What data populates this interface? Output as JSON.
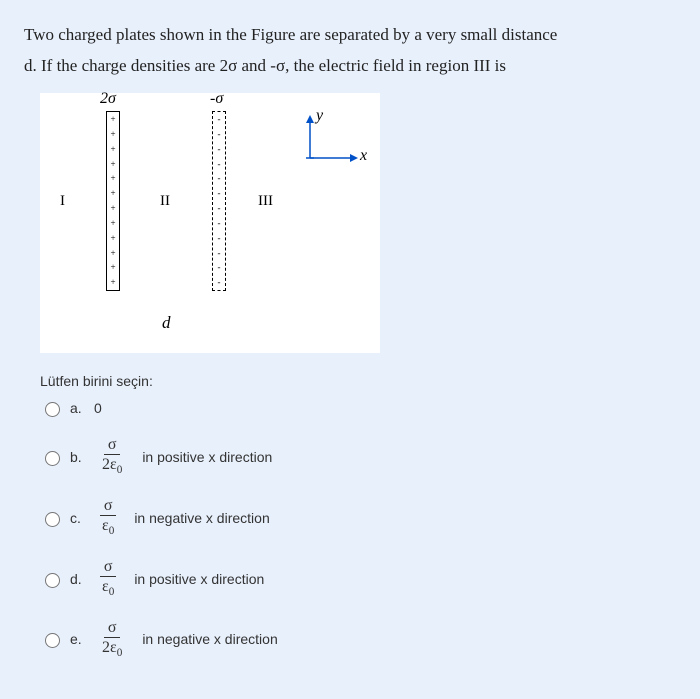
{
  "question": {
    "line1": "Two charged plates shown in the Figure are separated by a very small distance",
    "line2": "d. If the charge densities are 2σ and -σ, the electric field in region III is"
  },
  "figure": {
    "sigma_pos": "2σ",
    "sigma_neg": "-σ",
    "region1": "I",
    "region2": "II",
    "region3": "III",
    "d_label": "d",
    "y_label": "y",
    "x_label": "x",
    "pos_symbol": "+",
    "neg_symbol": "-",
    "charge_count": 12
  },
  "prompt": "Lütfen birini seçin:",
  "options": {
    "a": {
      "letter": "a.",
      "text": "0"
    },
    "b": {
      "letter": "b.",
      "num": "σ",
      "den": "2ε",
      "densub": "0",
      "dir": "in positive x direction"
    },
    "c": {
      "letter": "c.",
      "num": "σ",
      "den": "ε",
      "densub": "0",
      "dir": "in negative x direction"
    },
    "d": {
      "letter": "d.",
      "num": "σ",
      "den": "ε",
      "densub": "0",
      "dir": "in positive x direction"
    },
    "e": {
      "letter": "e.",
      "num": "σ",
      "den": "2ε",
      "densub": "0",
      "dir": "in negative x direction"
    }
  }
}
